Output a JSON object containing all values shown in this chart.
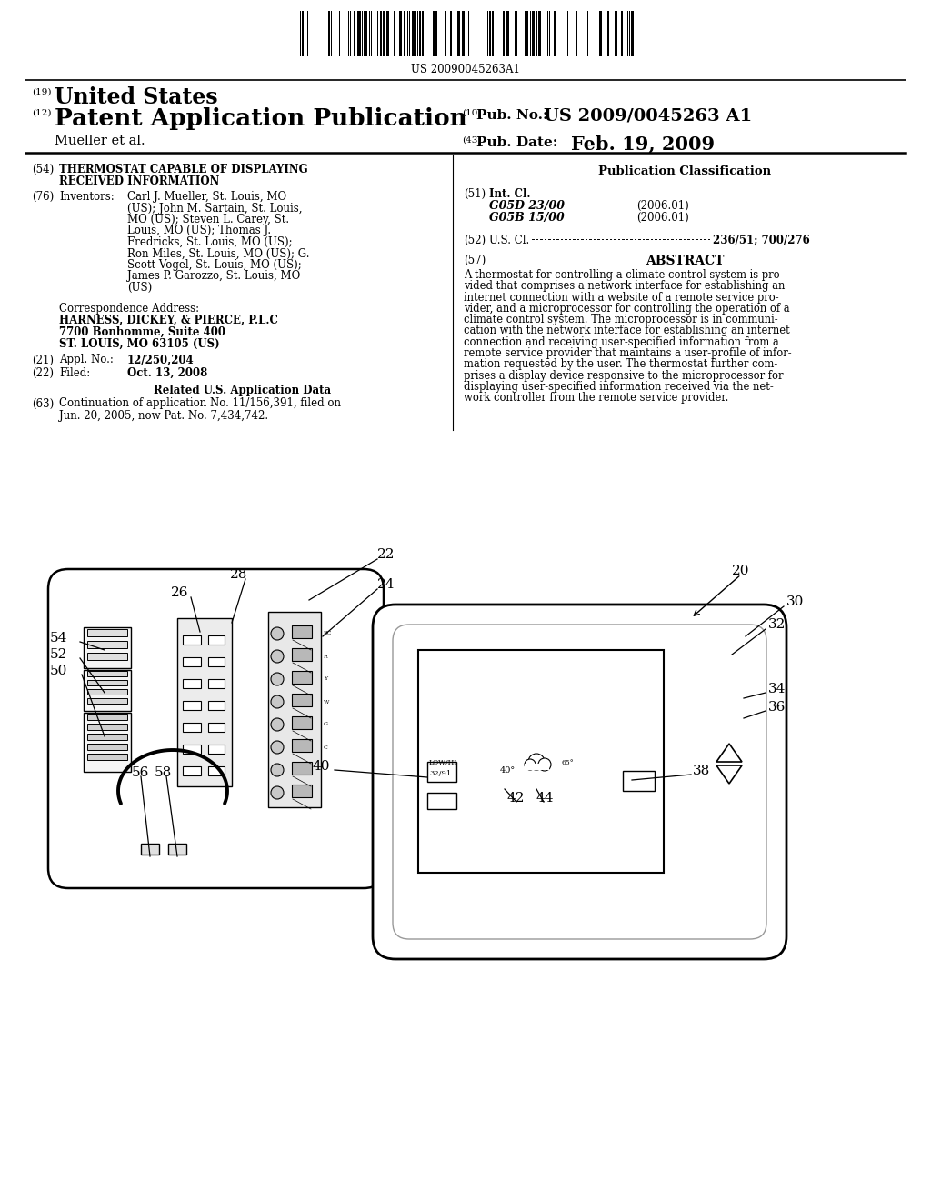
{
  "bg_color": "#ffffff",
  "barcode_text": "US 20090045263A1",
  "header_19": "(19)",
  "header_19_text": "United States",
  "header_12": "(12)",
  "header_12_text": "Patent Application Publication",
  "header_10": "(10)",
  "header_10_label": "Pub. No.:",
  "header_10_value": "US 2009/0045263 A1",
  "header_43": "(43)",
  "header_43_label": "Pub. Date:",
  "header_43_value": "Feb. 19, 2009",
  "mueller": "Mueller et al.",
  "field54_num": "(54)",
  "field76_num": "(76)",
  "field76_label": "Inventors:",
  "inv_lines": [
    "Carl J. Mueller, St. Louis, MO",
    "(US); John M. Sartain, St. Louis,",
    "MO (US); Steven L. Carey, St.",
    "Louis, MO (US); Thomas J.",
    "Fredricks, St. Louis, MO (US);",
    "Ron Miles, St. Louis, MO (US); G.",
    "Scott Vogel, St. Louis, MO (US);",
    "James P. Garozzo, St. Louis, MO",
    "(US)"
  ],
  "corr_label": "Correspondence Address:",
  "corr_firm": "HARNESS, DICKEY, & PIERCE, P.L.C",
  "corr_addr1": "7700 Bonhomme, Suite 400",
  "corr_addr2": "ST. LOUIS, MO 63105 (US)",
  "field21_num": "(21)",
  "field21_label": "Appl. No.:",
  "field21_value": "12/250,204",
  "field22_num": "(22)",
  "field22_label": "Filed:",
  "field22_value": "Oct. 13, 2008",
  "related_header": "Related U.S. Application Data",
  "field63_num": "(63)",
  "field63_lines": [
    "Continuation of application No. 11/156,391, filed on",
    "Jun. 20, 2005, now Pat. No. 7,434,742."
  ],
  "pub_class_header": "Publication Classification",
  "field51_num": "(51)",
  "field51_label": "Int. Cl.",
  "field51_g05d": "G05D 23/00",
  "field51_g05d_year": "(2006.01)",
  "field51_g05b": "G05B 15/00",
  "field51_g05b_year": "(2006.01)",
  "field52_num": "(52)",
  "field52_label": "U.S. Cl.",
  "field52_value": "236/51; 700/276",
  "field57_num": "(57)",
  "field57_header": "ABSTRACT",
  "field57_lines": [
    "A thermostat for controlling a climate control system is pro-",
    "vided that comprises a network interface for establishing an",
    "internet connection with a website of a remote service pro-",
    "vider, and a microprocessor for controlling the operation of a",
    "climate control system. The microprocessor is in communi-",
    "cation with the network interface for establishing an internet",
    "connection and receiving user-specified information from a",
    "remote service provider that maintains a user-profile of infor-",
    "mation requested by the user. The thermostat further com-",
    "prises a display device responsive to the microprocessor for",
    "displaying user-specified information received via the net-",
    "work controller from the remote service provider."
  ]
}
